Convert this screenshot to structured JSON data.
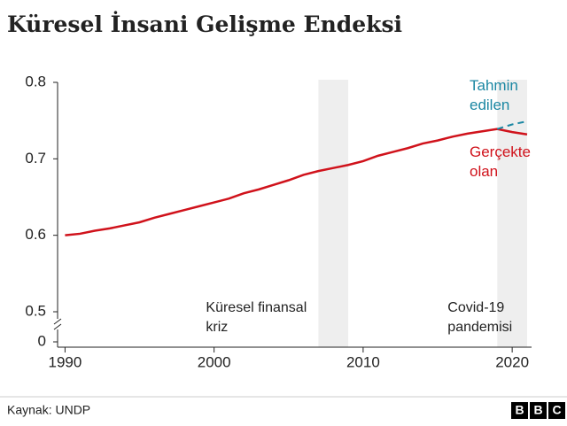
{
  "chart_data": {
    "type": "line",
    "title": "Küresel İnsani Gelişme Endeksi",
    "x": [
      1990,
      1991,
      1992,
      1993,
      1994,
      1995,
      1996,
      1997,
      1998,
      1999,
      2000,
      2001,
      2002,
      2003,
      2004,
      2005,
      2006,
      2007,
      2008,
      2009,
      2010,
      2011,
      2012,
      2013,
      2014,
      2015,
      2016,
      2017,
      2018,
      2019,
      2020,
      2021
    ],
    "series": [
      {
        "name": "Gerçekte olan",
        "color": "#d0121b",
        "dashed": false,
        "values": [
          0.6,
          0.602,
          0.606,
          0.609,
          0.613,
          0.617,
          0.623,
          0.628,
          0.633,
          0.638,
          0.643,
          0.648,
          0.655,
          0.66,
          0.666,
          0.672,
          0.679,
          0.684,
          0.688,
          0.692,
          0.697,
          0.704,
          0.709,
          0.714,
          0.72,
          0.724,
          0.729,
          0.733,
          0.736,
          0.739,
          0.735,
          0.732
        ]
      },
      {
        "name": "Tahmin edilen",
        "color": "#1b87a3",
        "dashed": true,
        "values": [
          null,
          null,
          null,
          null,
          null,
          null,
          null,
          null,
          null,
          null,
          null,
          null,
          null,
          null,
          null,
          null,
          null,
          null,
          null,
          null,
          null,
          null,
          null,
          null,
          null,
          null,
          null,
          null,
          null,
          0.739,
          0.745,
          0.749
        ]
      }
    ],
    "shaded": [
      {
        "start": 2007,
        "end": 2009,
        "label": [
          "Küresel finansal",
          "kriz"
        ]
      },
      {
        "start": 2019,
        "end": 2021,
        "label": [
          "Covid-19",
          "pandemisi"
        ]
      }
    ],
    "xlim": [
      1989.5,
      2021.3
    ],
    "xticks": [
      1990,
      2000,
      2010,
      2020
    ],
    "ylim": [
      0.5,
      0.8
    ],
    "yticks": [
      0.5,
      0.6,
      0.7,
      0.8
    ],
    "axis_break_tick": 0,
    "source": "Kaynak: UNDP",
    "logo": [
      "B",
      "B",
      "C"
    ]
  }
}
